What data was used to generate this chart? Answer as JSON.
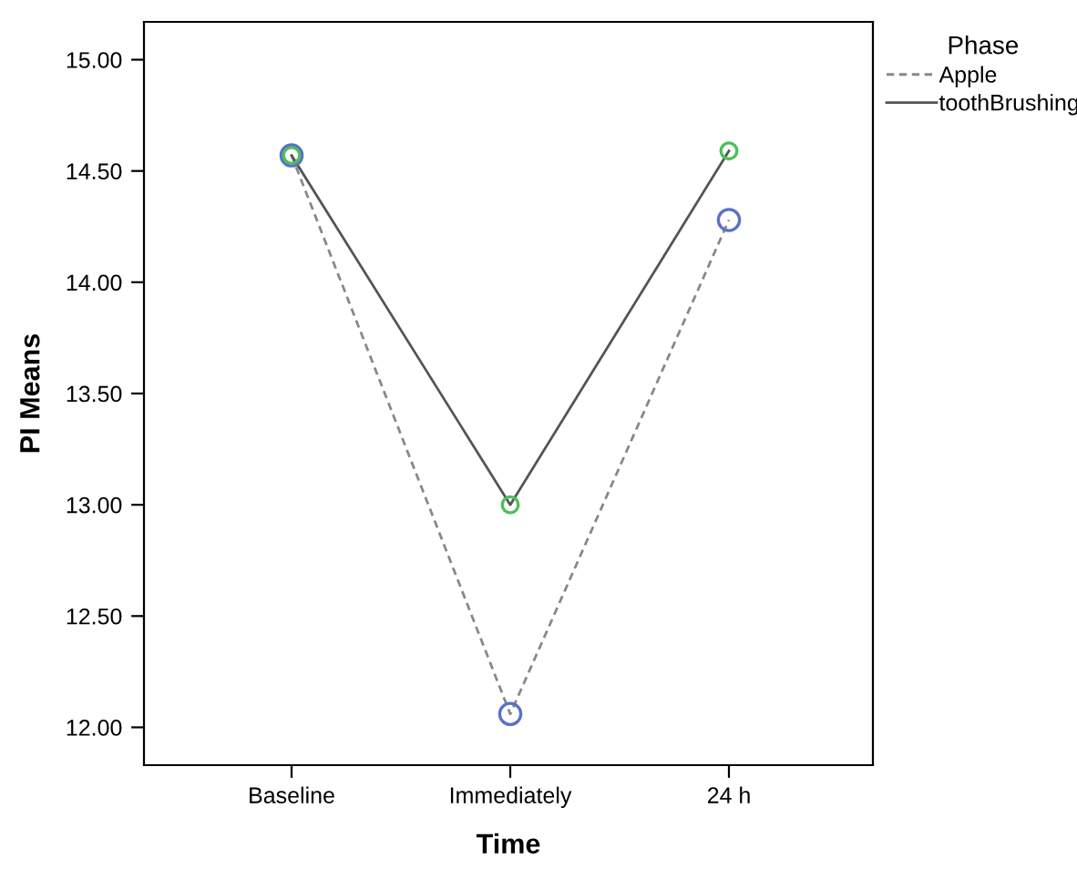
{
  "chart_data": {
    "type": "line",
    "xlabel": "Time",
    "ylabel": "PI Means",
    "legend_title": "Phase",
    "categories": [
      "Baseline",
      "Immediately",
      "24 h"
    ],
    "series": [
      {
        "name": "Apple",
        "color": "#888888",
        "colors": [
          "#5b70c8",
          "#5b70c8",
          "#5b70c8"
        ],
        "line_style": "dashed",
        "values": [
          14.57,
          12.06,
          14.28
        ]
      },
      {
        "name": "toothBrushing",
        "color": "#555555",
        "colors": [
          "#4cbf5a",
          "#4cbf5a",
          "#4cbf5a"
        ],
        "line_style": "solid",
        "values": [
          14.57,
          13.0,
          14.59
        ]
      }
    ],
    "ylim": [
      11.83,
      15.17
    ],
    "yticks": [
      {
        "value": 12,
        "label": "12.00"
      },
      {
        "value": 12.5,
        "label": "12.50"
      },
      {
        "value": 13,
        "label": "13.00"
      },
      {
        "value": 13.5,
        "label": "13.50"
      },
      {
        "value": 14,
        "label": "14.00"
      },
      {
        "value": 14.5,
        "label": "14.50"
      },
      {
        "value": 15,
        "label": "15.00"
      }
    ],
    "marker": "circle",
    "grid": false,
    "legend": "top right"
  }
}
